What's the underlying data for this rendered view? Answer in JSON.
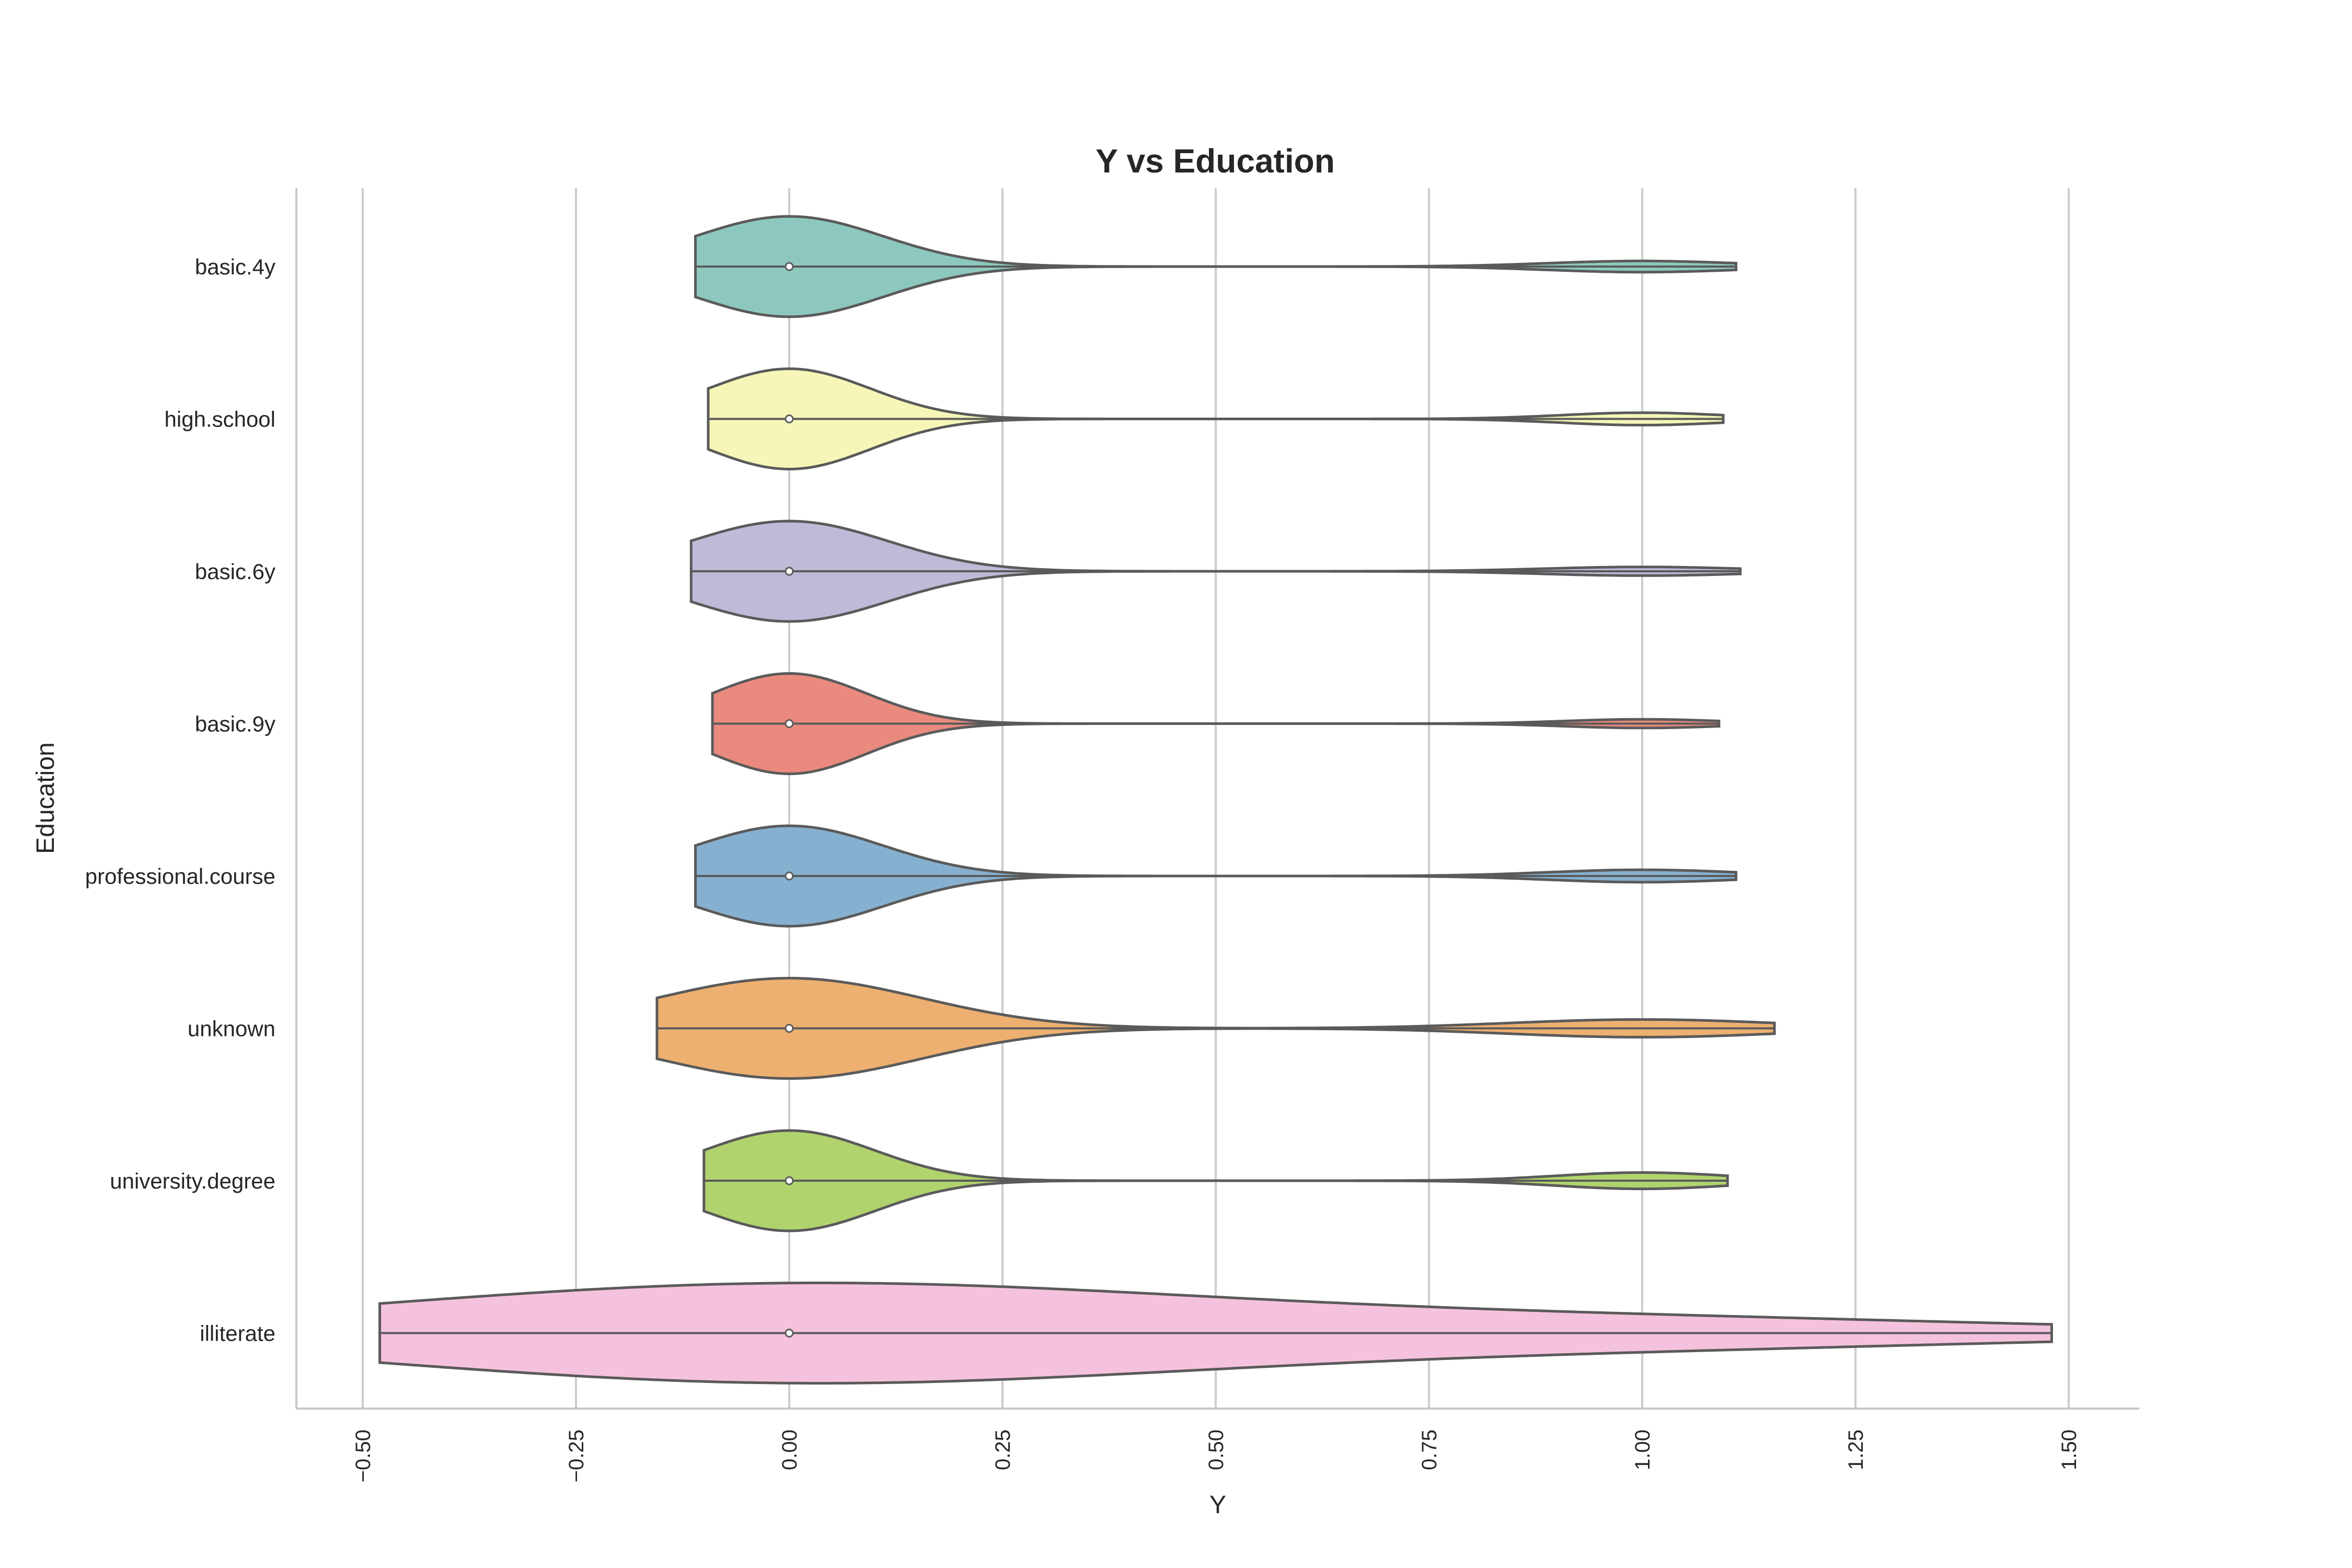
{
  "chart_data": {
    "type": "violin",
    "title": "Y vs Education",
    "xlabel": "Y",
    "ylabel": "Education",
    "xlim": [
      -0.56,
      1.58
    ],
    "xticks": [
      -0.5,
      -0.25,
      0.0,
      0.25,
      0.5,
      0.75,
      1.0,
      1.25,
      1.5
    ],
    "xtick_labels": [
      "−0.50",
      "−0.25",
      "0.00",
      "0.25",
      "0.50",
      "0.75",
      "1.00",
      "1.25",
      "1.50"
    ],
    "grid": "vertical",
    "orientation": "horizontal",
    "categories": [
      "basic.4y",
      "high.school",
      "basic.6y",
      "basic.9y",
      "professional.course",
      "unknown",
      "university.degree",
      "illiterate"
    ],
    "series": [
      {
        "category": "basic.4y",
        "color": "#8dc8be",
        "median": 0.0,
        "proportion_one": 0.1,
        "bandwidth": 0.11,
        "range": [
          -0.11,
          1.11
        ]
      },
      {
        "category": "high.school",
        "color": "#f6f6b8",
        "median": 0.0,
        "proportion_one": 0.11,
        "bandwidth": 0.095,
        "range": [
          -0.095,
          1.095
        ]
      },
      {
        "category": "basic.6y",
        "color": "#bebad8",
        "median": 0.0,
        "proportion_one": 0.08,
        "bandwidth": 0.115,
        "range": [
          -0.115,
          1.115
        ]
      },
      {
        "category": "basic.9y",
        "color": "#ea8a7e",
        "median": 0.0,
        "proportion_one": 0.08,
        "bandwidth": 0.09,
        "range": [
          -0.09,
          1.09
        ]
      },
      {
        "category": "professional.course",
        "color": "#86b0cf",
        "median": 0.0,
        "proportion_one": 0.11,
        "bandwidth": 0.11,
        "range": [
          -0.11,
          1.11
        ]
      },
      {
        "category": "unknown",
        "color": "#edb070",
        "median": 0.0,
        "proportion_one": 0.15,
        "bandwidth": 0.155,
        "range": [
          -0.155,
          1.155
        ]
      },
      {
        "category": "university.degree",
        "color": "#b0d36e",
        "median": 0.0,
        "proportion_one": 0.14,
        "bandwidth": 0.1,
        "range": [
          -0.1,
          1.1
        ]
      },
      {
        "category": "illiterate",
        "color": "#f5c2dd",
        "median": 0.0,
        "proportion_one": 0.22,
        "bandwidth": 0.48,
        "range": [
          -0.48,
          1.48
        ]
      }
    ]
  }
}
